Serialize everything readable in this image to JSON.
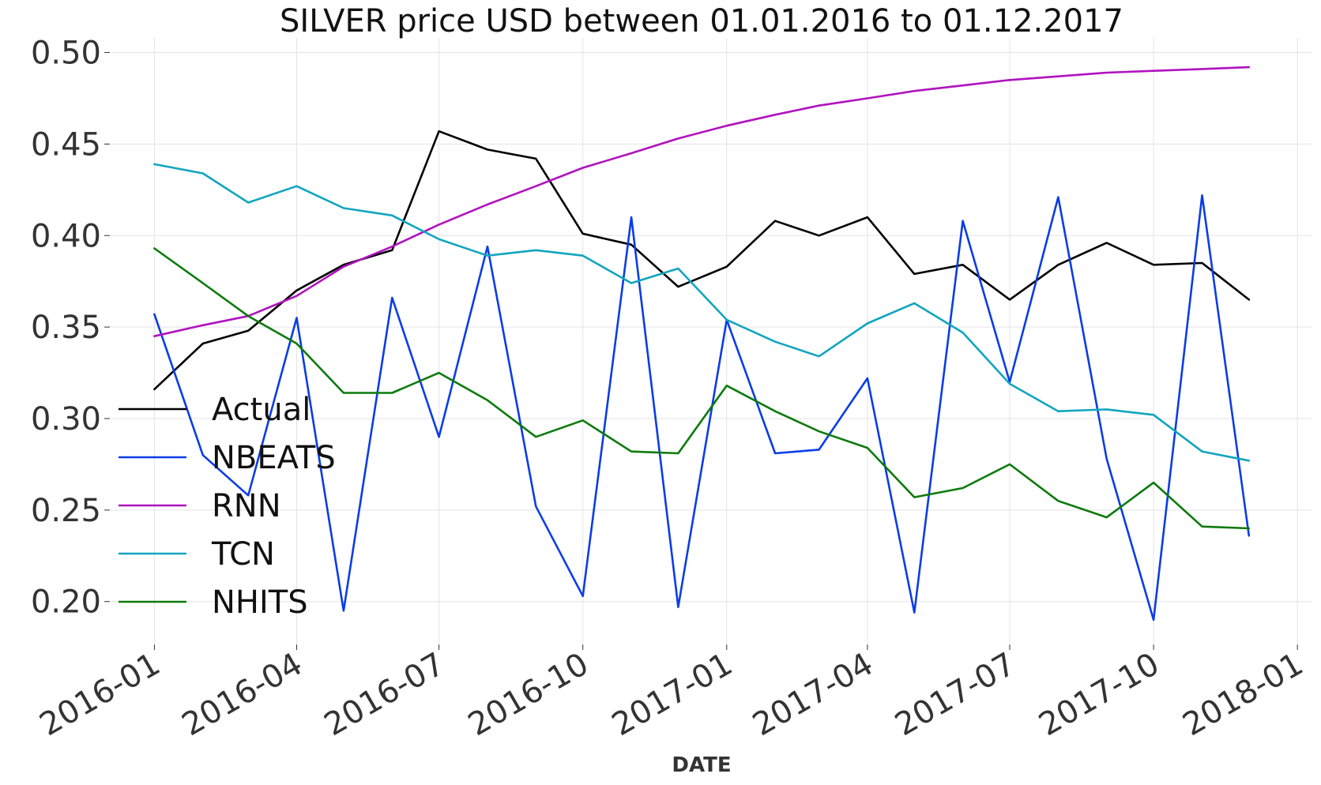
{
  "chart_data": {
    "type": "line",
    "title": "SILVER price USD between 01.01.2016 to 01.12.2017",
    "xlabel": "DATE",
    "ylabel": "",
    "x": [
      "2016-01-01",
      "2016-02-01",
      "2016-03-01",
      "2016-04-01",
      "2016-05-01",
      "2016-06-01",
      "2016-07-01",
      "2016-08-01",
      "2016-09-01",
      "2016-10-01",
      "2016-11-01",
      "2016-12-01",
      "2017-01-01",
      "2017-02-01",
      "2017-03-01",
      "2017-04-01",
      "2017-05-01",
      "2017-06-01",
      "2017-07-01",
      "2017-08-01",
      "2017-09-01",
      "2017-10-01",
      "2017-11-01",
      "2017-12-01"
    ],
    "xlim": [
      "2015-12-04",
      "2018-01-10"
    ],
    "ylim": [
      0.177,
      0.508
    ],
    "x_ticks": [
      "2016-01",
      "2016-04",
      "2016-07",
      "2016-10",
      "2017-01",
      "2017-04",
      "2017-07",
      "2017-10",
      "2018-01"
    ],
    "y_ticks": [
      "0.20",
      "0.25",
      "0.30",
      "0.35",
      "0.40",
      "0.45",
      "0.50"
    ],
    "grid": true,
    "legend_position": "lower-left",
    "series": [
      {
        "name": "Actual",
        "color": "#000000",
        "values": [
          0.316,
          0.341,
          0.348,
          0.37,
          0.384,
          0.392,
          0.457,
          0.447,
          0.442,
          0.401,
          0.395,
          0.372,
          0.383,
          0.408,
          0.4,
          0.41,
          0.379,
          0.384,
          0.365,
          0.384,
          0.396,
          0.384,
          0.385,
          0.365
        ]
      },
      {
        "name": "NBEATS",
        "color": "#0a3de6",
        "values": [
          0.357,
          0.28,
          0.258,
          0.355,
          0.195,
          0.366,
          0.29,
          0.394,
          0.252,
          0.203,
          0.41,
          0.197,
          0.354,
          0.281,
          0.283,
          0.322,
          0.194,
          0.408,
          0.32,
          0.421,
          0.278,
          0.19,
          0.422,
          0.236
        ]
      },
      {
        "name": "RNN",
        "color": "#b012bf",
        "values": [
          0.345,
          0.351,
          0.356,
          0.367,
          0.383,
          0.394,
          0.406,
          0.417,
          0.427,
          0.437,
          0.445,
          0.453,
          0.46,
          0.466,
          0.471,
          0.475,
          0.479,
          0.482,
          0.485,
          0.487,
          0.489,
          0.49,
          0.491,
          0.492
        ]
      },
      {
        "name": "TCN",
        "color": "#12a5bf",
        "values": [
          0.439,
          0.434,
          0.418,
          0.427,
          0.415,
          0.411,
          0.398,
          0.389,
          0.392,
          0.389,
          0.374,
          0.382,
          0.354,
          0.342,
          0.334,
          0.352,
          0.363,
          0.347,
          0.319,
          0.304,
          0.305,
          0.302,
          0.282,
          0.277
        ]
      },
      {
        "name": "NHITS",
        "color": "#0c7a0c",
        "values": [
          0.393,
          0.374,
          0.356,
          0.341,
          0.314,
          0.314,
          0.325,
          0.31,
          0.29,
          0.299,
          0.282,
          0.281,
          0.318,
          0.304,
          0.293,
          0.284,
          0.257,
          0.262,
          0.275,
          0.255,
          0.246,
          0.265,
          0.241,
          0.24
        ]
      }
    ]
  }
}
